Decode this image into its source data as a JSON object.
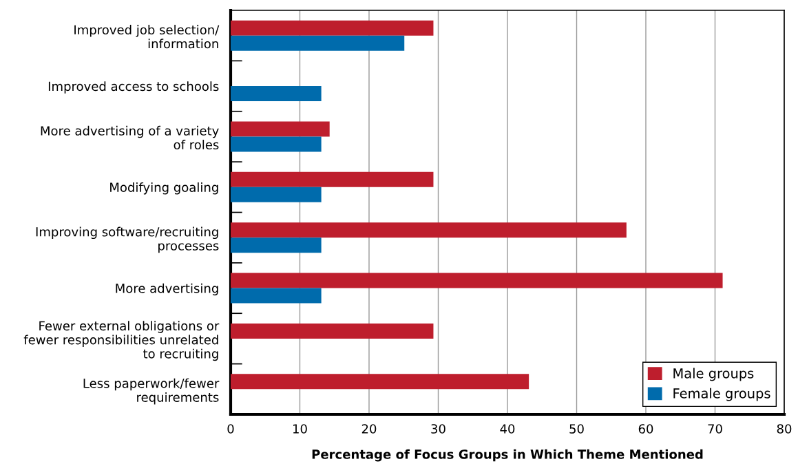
{
  "chart_data": {
    "type": "bar",
    "orientation": "horizontal",
    "xlabel": "Percentage of Focus Groups in Which Theme Mentioned",
    "categories": [
      "Improved job selection/\ninformation",
      "Improved access to schools",
      "More advertising of a variety\nof roles",
      "Modifying goaling",
      "Improving software/recruiting\nprocesses",
      "More advertising",
      "Fewer external obligations or\nfewer responsibilities unrelated\nto recruiting",
      "Less paperwork/fewer\nrequirements"
    ],
    "series": [
      {
        "name": "Male groups",
        "color": "#be1e2d",
        "values": [
          29.3,
          null,
          14.3,
          29.3,
          57.2,
          71.1,
          29.3,
          43.1
        ]
      },
      {
        "name": "Female groups",
        "color": "#006bac",
        "values": [
          25.1,
          13.1,
          13.1,
          13.1,
          13.1,
          13.1,
          null,
          null
        ]
      }
    ],
    "xlim": [
      0,
      80
    ],
    "xticks": [
      0,
      10,
      20,
      30,
      40,
      50,
      60,
      70,
      80
    ],
    "grid": "x",
    "legend": "bottom right"
  }
}
